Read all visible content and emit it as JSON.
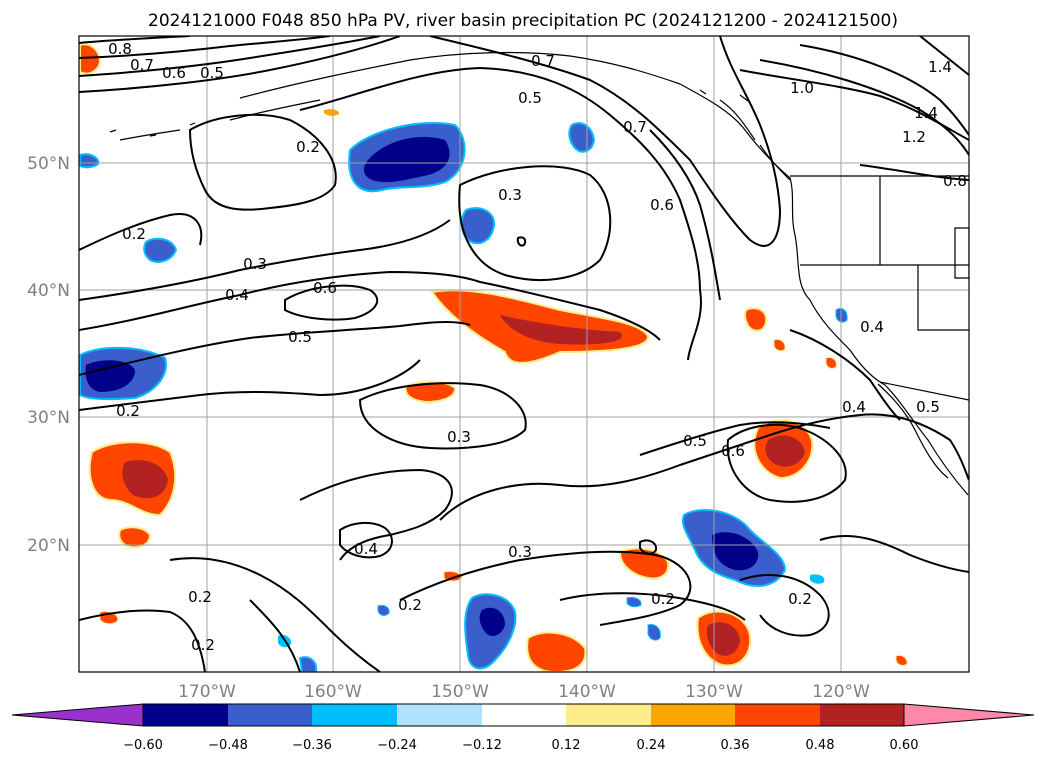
{
  "title": "2024121000 F048 850 hPa PV, river basin precipitation PC (2024121200 - 2024121500)",
  "map": {
    "lon_labels": [
      "170°W",
      "160°W",
      "150°W",
      "140°W",
      "130°W",
      "120°W"
    ],
    "lat_labels": [
      "50°N",
      "40°N",
      "30°N",
      "20°N"
    ],
    "land_color": "#ffffff",
    "grid_color": "#a0a0a0"
  },
  "contour_labels": [
    "0.8",
    "0.7",
    "0.6",
    "0.5",
    "0.7",
    "0.5",
    "0.7",
    "0.6",
    "1.0",
    "1.4",
    "1.4",
    "1.2",
    "0.8",
    "0.2",
    "0.3",
    "0.2",
    "0.3",
    "0.4",
    "0.6",
    "0.5",
    "0.4",
    "0.2",
    "0.3",
    "0.4",
    "0.5",
    "0.5",
    "0.6",
    "0.4",
    "0.3",
    "0.2",
    "0.2",
    "0.2",
    "0.2",
    "0.2"
  ],
  "colorbar": {
    "ticks": [
      "−0.60",
      "−0.48",
      "−0.36",
      "−0.24",
      "−0.12",
      "0.12",
      "0.24",
      "0.36",
      "0.48",
      "0.60"
    ],
    "colors": [
      "#9932cc",
      "#00008b",
      "#3a5fcd",
      "#00bfff",
      "#b0e2ff",
      "#ffffff",
      "#ffec8b",
      "#ffa500",
      "#ff4500",
      "#b22222",
      "#ff88aa"
    ]
  }
}
